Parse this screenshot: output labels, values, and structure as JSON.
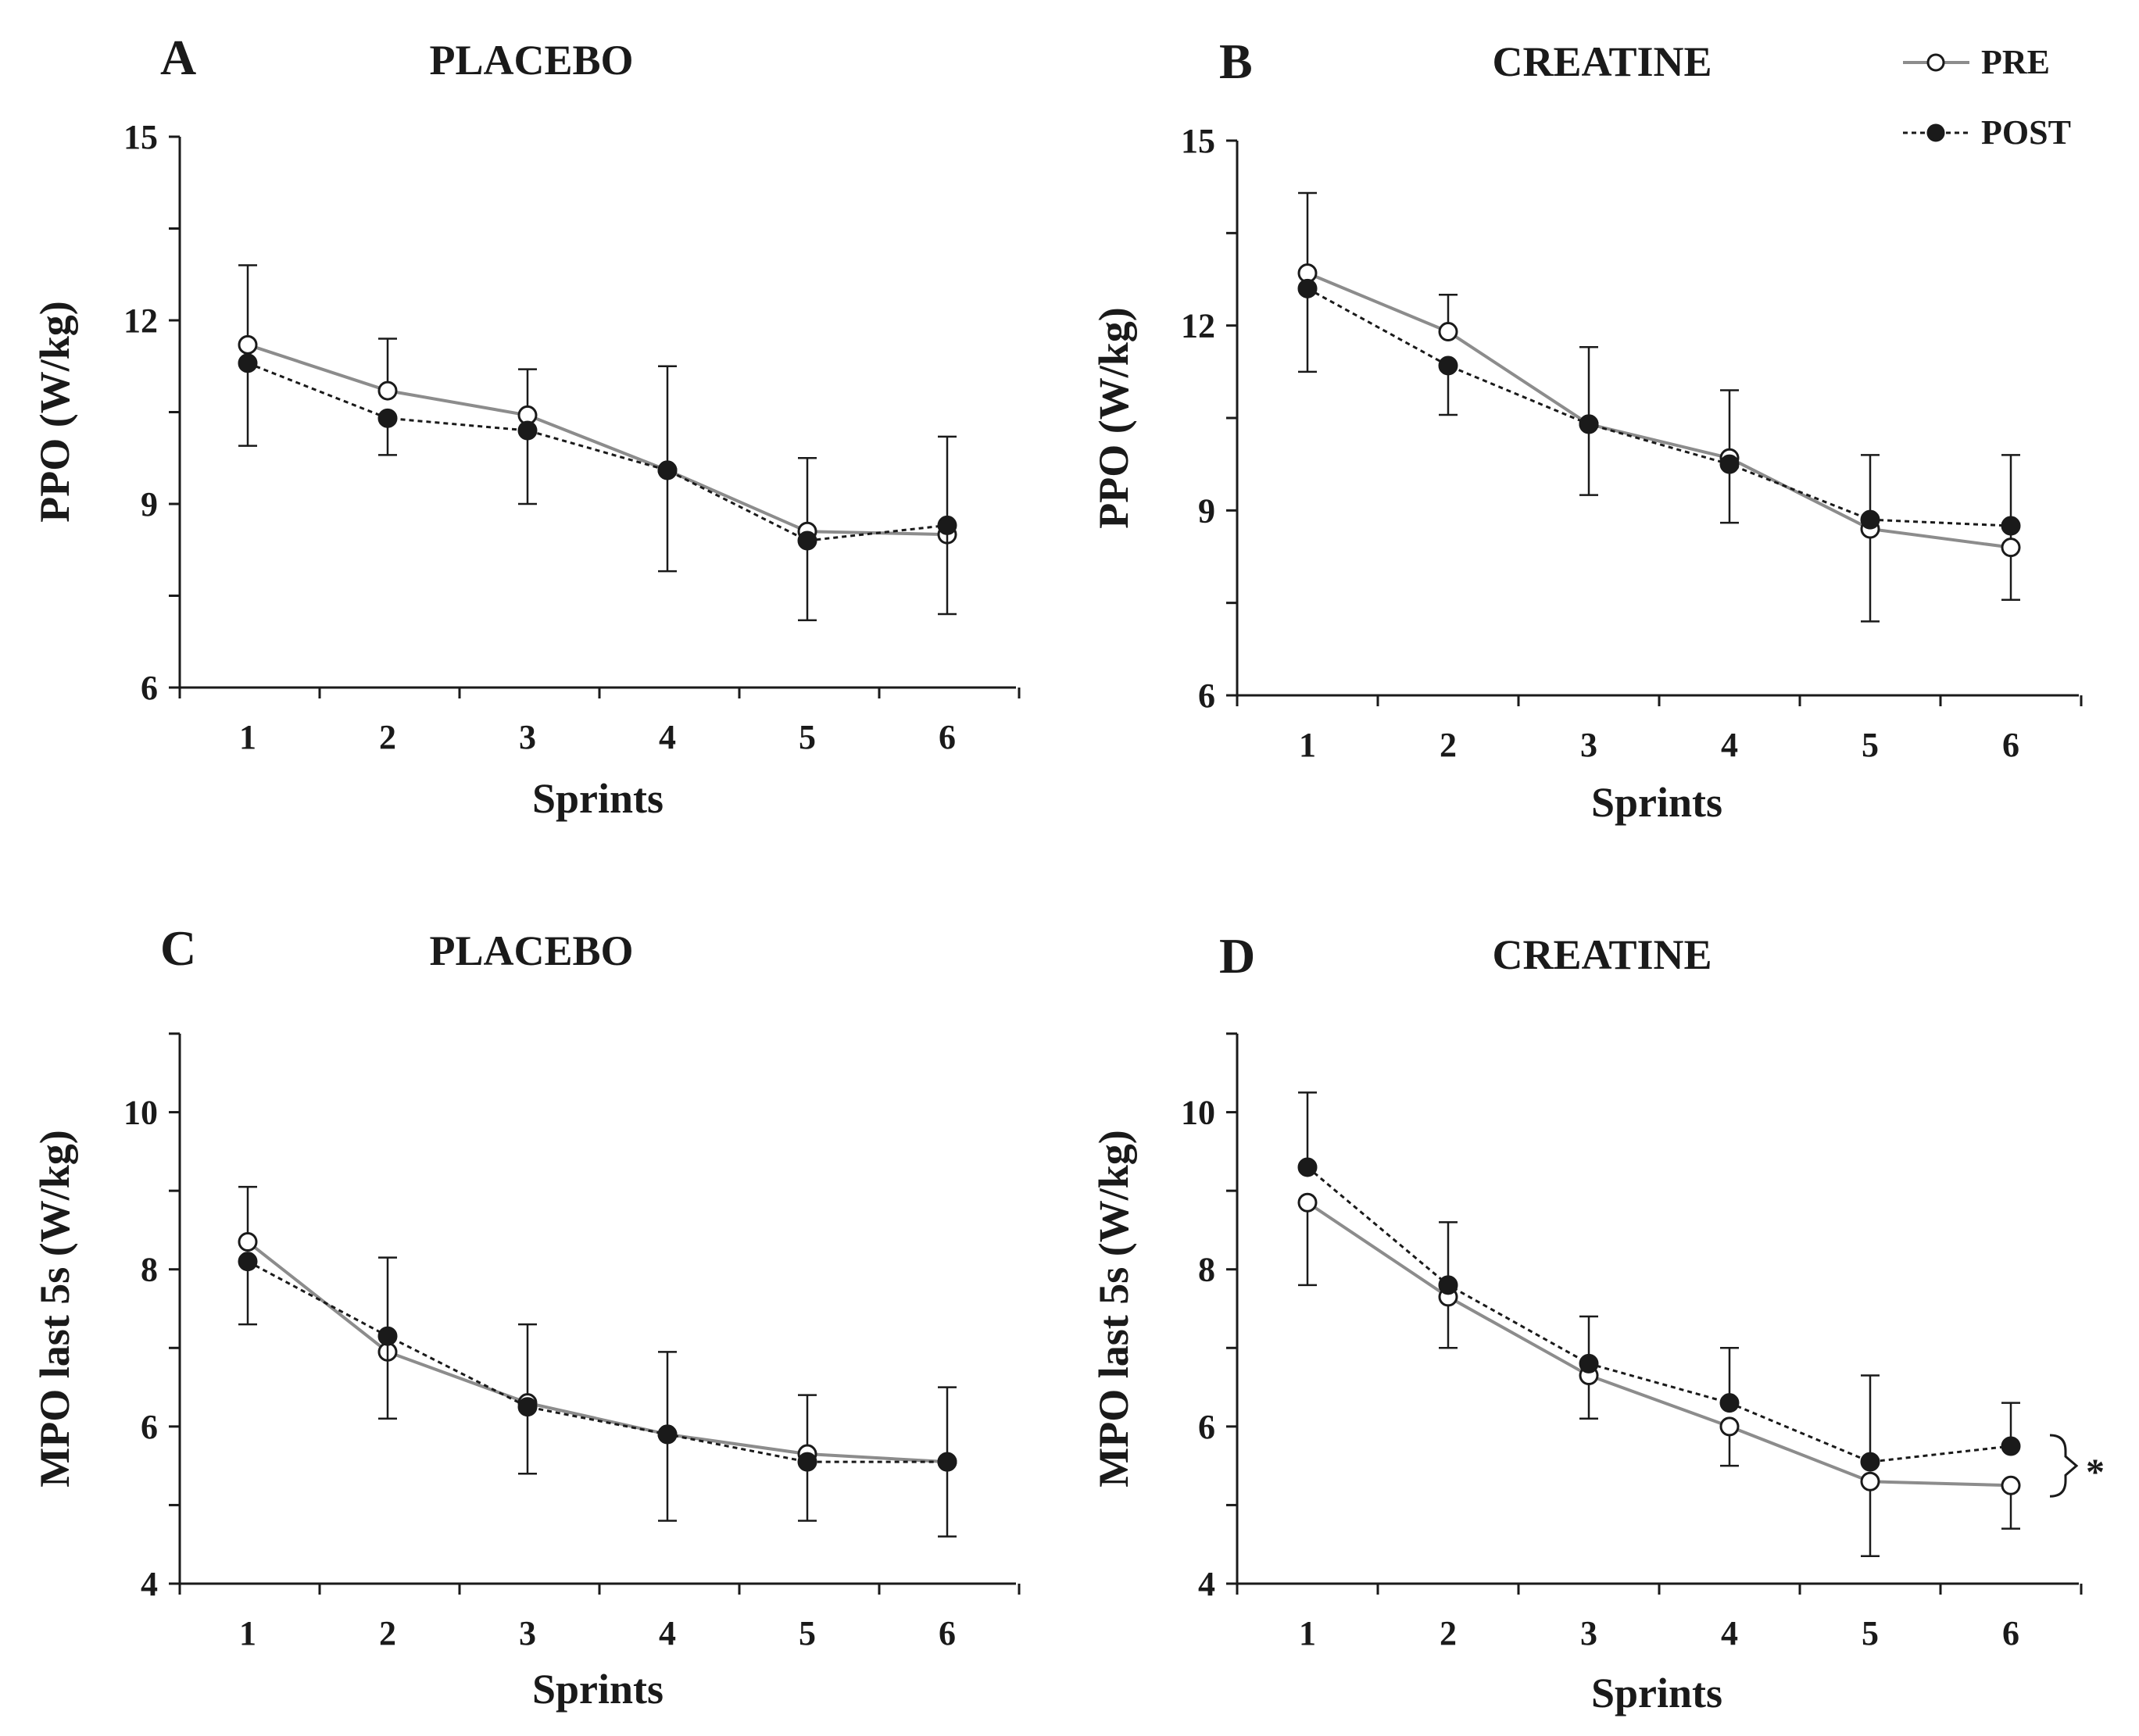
{
  "colors": {
    "ink": "#1a1a1a",
    "pre_line": "#8c8c8c",
    "post_line": "#1a1a1a",
    "marker_fill_pre": "#ffffff",
    "marker_fill_post": "#1a1a1a"
  },
  "legend": {
    "pre": "PRE",
    "post": "POST"
  },
  "chart_data": [
    {
      "id": "A",
      "panel_letter": "A",
      "title": "PLACEBO",
      "type": "line",
      "xlabel": "Sprints",
      "ylabel": "PPO (W/kg)",
      "x": [
        1,
        2,
        3,
        4,
        5,
        6
      ],
      "ylim": [
        6,
        15
      ],
      "yticks": [
        6,
        9,
        12,
        15
      ],
      "series": [
        {
          "name": "PRE",
          "values": [
            11.6,
            10.85,
            10.45,
            9.55,
            8.55,
            8.5
          ],
          "err_up": [
            1.3,
            0.85,
            0.75,
            1.7,
            1.2,
            1.6
          ],
          "err_down": [
            0.0,
            0.0,
            0.0,
            0.0,
            0.0,
            0.0
          ]
        },
        {
          "name": "POST",
          "values": [
            11.3,
            10.4,
            10.2,
            9.55,
            8.4,
            8.65
          ],
          "err_up": [
            0.0,
            0.0,
            0.0,
            0.0,
            0.0,
            0.0
          ],
          "err_down": [
            1.35,
            0.6,
            1.2,
            1.65,
            1.3,
            1.45
          ]
        }
      ]
    },
    {
      "id": "B",
      "panel_letter": "B",
      "title": "CREATINE",
      "type": "line",
      "xlabel": "Sprints",
      "ylabel": "PPO (W/kg)",
      "x": [
        1,
        2,
        3,
        4,
        5,
        6
      ],
      "ylim": [
        6,
        15
      ],
      "yticks": [
        6,
        9,
        12,
        15
      ],
      "series": [
        {
          "name": "PRE",
          "values": [
            12.85,
            11.9,
            10.4,
            9.85,
            8.7,
            8.4
          ],
          "err_up": [
            1.3,
            0.6,
            1.25,
            1.1,
            1.2,
            1.5
          ],
          "err_down": [
            0.0,
            0.0,
            0.0,
            0.0,
            1.5,
            0.85
          ]
        },
        {
          "name": "POST",
          "values": [
            12.6,
            11.35,
            10.4,
            9.75,
            8.85,
            8.75
          ],
          "err_up": [
            0.0,
            0.0,
            0.0,
            0.0,
            0.0,
            0.0
          ],
          "err_down": [
            1.35,
            0.8,
            1.15,
            0.95,
            0.0,
            0.0
          ]
        }
      ]
    },
    {
      "id": "C",
      "panel_letter": "C",
      "title": "PLACEBO",
      "type": "line",
      "xlabel": "Sprints",
      "ylabel": "MPO last 5s (W/kg)",
      "x": [
        1,
        2,
        3,
        4,
        5,
        6
      ],
      "ylim": [
        4,
        11
      ],
      "yticks": [
        4,
        6,
        8,
        10
      ],
      "series": [
        {
          "name": "PRE",
          "values": [
            8.35,
            6.95,
            6.3,
            5.9,
            5.65,
            5.55
          ],
          "err_up": [
            0.7,
            1.2,
            1.0,
            1.05,
            0.75,
            0.95
          ],
          "err_down": [
            0.0,
            0.0,
            0.0,
            0.0,
            0.0,
            0.0
          ]
        },
        {
          "name": "POST",
          "values": [
            8.1,
            7.15,
            6.25,
            5.9,
            5.55,
            5.55
          ],
          "err_up": [
            0.0,
            0.0,
            0.0,
            0.0,
            0.0,
            0.0
          ],
          "err_down": [
            0.8,
            1.05,
            0.85,
            1.1,
            0.75,
            0.95
          ]
        }
      ]
    },
    {
      "id": "D",
      "panel_letter": "D",
      "title": "CREATINE",
      "type": "line",
      "xlabel": "Sprints",
      "ylabel": "MPO last 5s (W/kg)",
      "x": [
        1,
        2,
        3,
        4,
        5,
        6
      ],
      "ylim": [
        4,
        11
      ],
      "yticks": [
        4,
        6,
        8,
        10
      ],
      "annotation": "*",
      "series": [
        {
          "name": "PRE",
          "values": [
            8.85,
            7.65,
            6.65,
            6.0,
            5.3,
            5.25
          ],
          "err_up": [
            0.0,
            0.0,
            0.0,
            0.0,
            0.0,
            0.0
          ],
          "err_down": [
            1.05,
            0.65,
            0.55,
            0.5,
            0.95,
            0.55
          ]
        },
        {
          "name": "POST",
          "values": [
            9.3,
            7.8,
            6.8,
            6.3,
            5.55,
            5.75
          ],
          "err_up": [
            0.95,
            0.8,
            0.6,
            0.7,
            1.1,
            0.55
          ],
          "err_down": [
            0.0,
            0.0,
            0.0,
            0.0,
            0.0,
            0.0
          ]
        }
      ]
    }
  ]
}
